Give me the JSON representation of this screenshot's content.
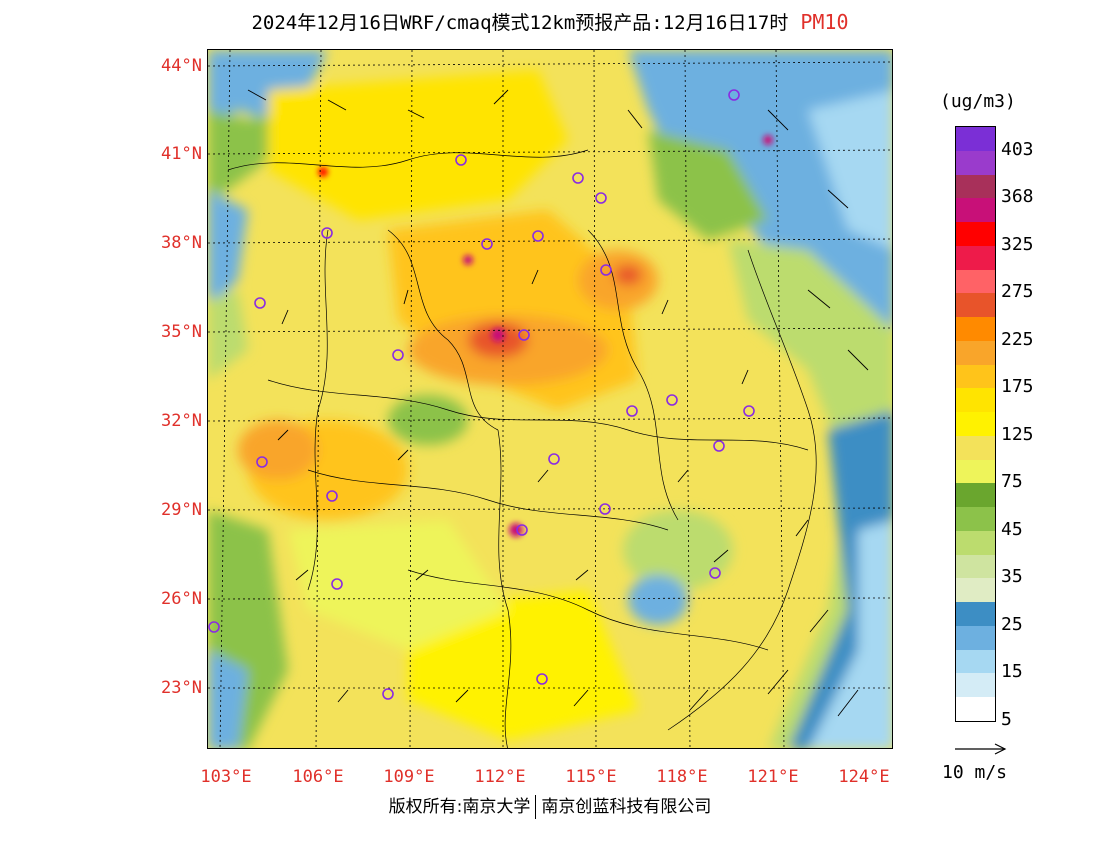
{
  "title": {
    "main": "2024年12月16日WRF/cmaq模式12km预报产品:12月16日17时",
    "pollutant": "PM10"
  },
  "latitude_labels": [
    "44°N",
    "41°N",
    "38°N",
    "35°N",
    "32°N",
    "29°N",
    "26°N",
    "23°N"
  ],
  "longitude_labels": [
    "103°E",
    "106°E",
    "109°E",
    "112°E",
    "115°E",
    "118°E",
    "121°E",
    "124°E"
  ],
  "legend": {
    "unit": "(ug/m3)",
    "ticks": [
      "403",
      "368",
      "325",
      "275",
      "225",
      "175",
      "125",
      "75",
      "45",
      "35",
      "25",
      "15",
      "5"
    ],
    "colors": [
      "#7b2fd6",
      "#9a3bcc",
      "#a8305a",
      "#c81078",
      "#ff0000",
      "#ee1b4a",
      "#ff6266",
      "#e8542a",
      "#ff8a00",
      "#f9a52a",
      "#ffc41a",
      "#ffe400",
      "#fff200",
      "#f3e25a",
      "#eef45a",
      "#6aa62e",
      "#8cc24a",
      "#bcdc6e",
      "#cfe4a0",
      "#e0ecc4",
      "#3d8ec4",
      "#6db0e0",
      "#a6d8f2",
      "#d4ecf6",
      "#ffffff"
    ]
  },
  "wind_scale_label": "10 m/s",
  "copyright": {
    "left": "版权所有:南京大学",
    "right": "南京创蓝科技有限公司"
  }
}
